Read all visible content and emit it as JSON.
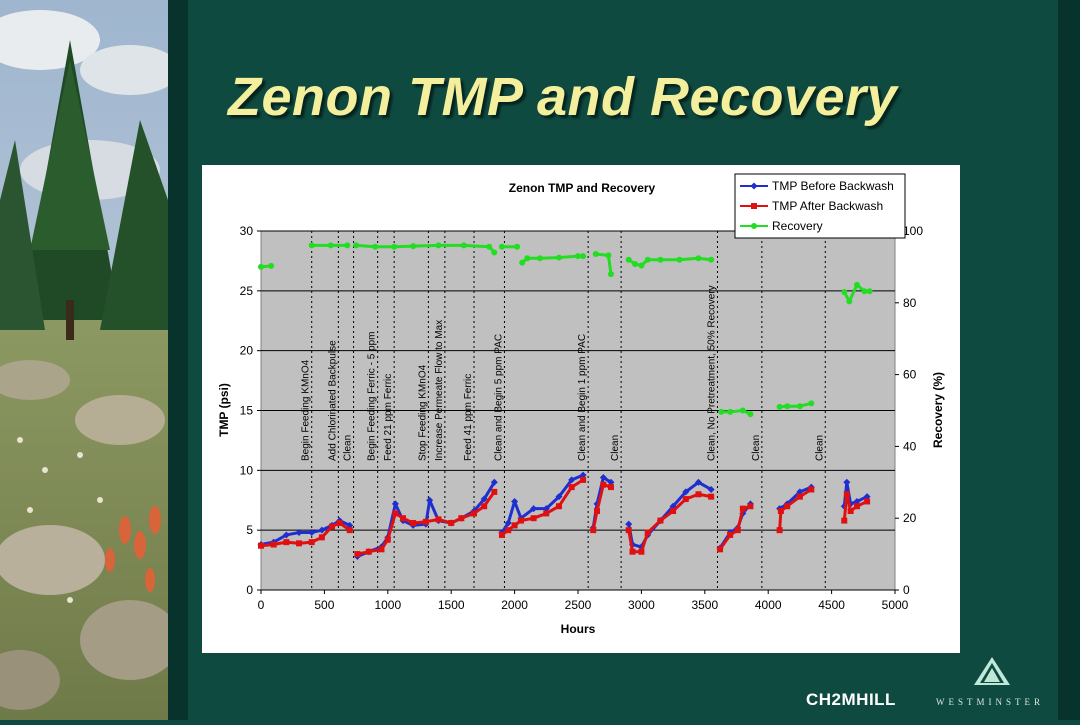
{
  "slide": {
    "title": "Zenon TMP and Recovery",
    "logos": {
      "left": "CH2MHILL",
      "right": "WESTMINSTER"
    }
  },
  "colors": {
    "background": "#0f4a40",
    "title": "#f4ef9c",
    "tmp_before": "#1f2fcf",
    "tmp_after": "#e01010",
    "recovery": "#22dd22",
    "plot_bg": "#c0c0c0"
  },
  "chart_data": {
    "type": "scatter",
    "title": "Zenon TMP and Recovery",
    "xlabel": "Hours",
    "ylabel": "TMP (psi)",
    "y2label": "Recovery (%)",
    "xlim": [
      0,
      5000
    ],
    "ylim": [
      0,
      30
    ],
    "y2lim": [
      0,
      100
    ],
    "xticks": [
      0,
      500,
      1000,
      1500,
      2000,
      2500,
      3000,
      3500,
      4000,
      4500,
      5000
    ],
    "yticks": [
      0,
      5,
      10,
      15,
      20,
      25,
      30
    ],
    "y2ticks": [
      0,
      20,
      40,
      60,
      80,
      100
    ],
    "grid": "horizontal",
    "legend_position": "top-right",
    "series": [
      {
        "name": "TMP Before Backwash",
        "axis": "left",
        "segments": [
          [
            [
              0,
              3.8
            ],
            [
              100,
              4.0
            ],
            [
              200,
              4.6
            ],
            [
              300,
              4.8
            ],
            [
              400,
              4.8
            ],
            [
              480,
              5.0
            ],
            [
              560,
              5.4
            ],
            [
              620,
              5.8
            ],
            [
              700,
              5.4
            ]
          ],
          [
            [
              760,
              2.8
            ],
            [
              850,
              3.2
            ],
            [
              950,
              3.6
            ],
            [
              1000,
              4.4
            ],
            [
              1060,
              7.2
            ],
            [
              1120,
              5.8
            ],
            [
              1200,
              5.4
            ],
            [
              1300,
              5.5
            ],
            [
              1330,
              7.5
            ],
            [
              1400,
              5.8
            ],
            [
              1500,
              5.6
            ],
            [
              1580,
              6.0
            ],
            [
              1680,
              6.6
            ],
            [
              1760,
              7.6
            ],
            [
              1840,
              9.0
            ]
          ],
          [
            [
              1900,
              4.8
            ],
            [
              1950,
              5.6
            ],
            [
              2000,
              7.4
            ],
            [
              2050,
              6.0
            ],
            [
              2150,
              6.8
            ],
            [
              2250,
              6.8
            ],
            [
              2350,
              7.8
            ],
            [
              2450,
              9.2
            ],
            [
              2540,
              9.6
            ]
          ],
          [
            [
              2620,
              5.2
            ],
            [
              2650,
              7.2
            ],
            [
              2700,
              9.4
            ],
            [
              2760,
              9.0
            ]
          ],
          [
            [
              2900,
              5.5
            ],
            [
              2930,
              3.8
            ],
            [
              3000,
              3.6
            ],
            [
              3050,
              4.6
            ],
            [
              3150,
              5.8
            ],
            [
              3250,
              7.0
            ],
            [
              3350,
              8.2
            ],
            [
              3450,
              9.0
            ],
            [
              3550,
              8.4
            ]
          ],
          [
            [
              3620,
              3.5
            ],
            [
              3700,
              4.8
            ],
            [
              3760,
              5.2
            ],
            [
              3800,
              6.4
            ],
            [
              3860,
              7.2
            ]
          ],
          [
            [
              4090,
              6.8
            ],
            [
              4150,
              7.2
            ],
            [
              4250,
              8.2
            ],
            [
              4340,
              8.6
            ]
          ],
          [
            [
              4600,
              7.0
            ],
            [
              4620,
              9.0
            ],
            [
              4650,
              7.2
            ],
            [
              4700,
              7.4
            ],
            [
              4780,
              7.8
            ]
          ]
        ]
      },
      {
        "name": "TMP After Backwash",
        "axis": "left",
        "segments": [
          [
            [
              0,
              3.7
            ],
            [
              100,
              3.8
            ],
            [
              200,
              4.0
            ],
            [
              300,
              3.9
            ],
            [
              400,
              4.0
            ],
            [
              480,
              4.4
            ],
            [
              560,
              5.3
            ],
            [
              620,
              5.6
            ],
            [
              700,
              5.0
            ]
          ],
          [
            [
              760,
              3.0
            ],
            [
              850,
              3.2
            ],
            [
              950,
              3.4
            ],
            [
              1000,
              4.2
            ],
            [
              1060,
              6.4
            ],
            [
              1120,
              6.0
            ],
            [
              1200,
              5.6
            ],
            [
              1300,
              5.7
            ],
            [
              1400,
              5.9
            ],
            [
              1500,
              5.6
            ],
            [
              1580,
              6.0
            ],
            [
              1680,
              6.4
            ],
            [
              1760,
              7.0
            ],
            [
              1840,
              8.2
            ]
          ],
          [
            [
              1900,
              4.6
            ],
            [
              1950,
              5.0
            ],
            [
              2000,
              5.4
            ],
            [
              2050,
              5.8
            ],
            [
              2150,
              6.0
            ],
            [
              2250,
              6.4
            ],
            [
              2350,
              7.0
            ],
            [
              2450,
              8.6
            ],
            [
              2540,
              9.2
            ]
          ],
          [
            [
              2620,
              5.0
            ],
            [
              2650,
              6.6
            ],
            [
              2700,
              8.8
            ],
            [
              2760,
              8.6
            ]
          ],
          [
            [
              2900,
              5.0
            ],
            [
              2930,
              3.2
            ],
            [
              3000,
              3.2
            ],
            [
              3050,
              4.8
            ],
            [
              3150,
              5.8
            ],
            [
              3250,
              6.6
            ],
            [
              3350,
              7.6
            ],
            [
              3450,
              8.0
            ],
            [
              3550,
              7.8
            ]
          ],
          [
            [
              3620,
              3.4
            ],
            [
              3700,
              4.6
            ],
            [
              3760,
              5.0
            ],
            [
              3800,
              6.8
            ],
            [
              3860,
              7.0
            ]
          ],
          [
            [
              4090,
              5.0
            ],
            [
              4100,
              6.6
            ],
            [
              4150,
              7.0
            ],
            [
              4250,
              7.8
            ],
            [
              4340,
              8.4
            ]
          ],
          [
            [
              4600,
              5.8
            ],
            [
              4620,
              8.0
            ],
            [
              4650,
              6.6
            ],
            [
              4700,
              7.0
            ],
            [
              4780,
              7.4
            ]
          ]
        ]
      },
      {
        "name": "Recovery",
        "axis": "right",
        "segments": [
          [
            [
              0,
              90.0
            ],
            [
              80,
              90.3
            ]
          ],
          [
            [
              400,
              96.0
            ],
            [
              550,
              96.0
            ],
            [
              680,
              96.0
            ]
          ],
          [
            [
              750,
              96.0
            ],
            [
              900,
              95.6
            ],
            [
              1050,
              95.6
            ],
            [
              1200,
              95.8
            ],
            [
              1400,
              96.0
            ],
            [
              1600,
              96.0
            ],
            [
              1800,
              95.6
            ],
            [
              1840,
              94.0
            ]
          ],
          [
            [
              1900,
              95.6
            ],
            [
              2020,
              95.6
            ]
          ],
          [
            [
              2060,
              91.2
            ],
            [
              2100,
              92.4
            ],
            [
              2200,
              92.4
            ],
            [
              2350,
              92.6
            ],
            [
              2500,
              93.0
            ],
            [
              2540,
              93.0
            ]
          ],
          [
            [
              2640,
              93.6
            ],
            [
              2740,
              93.2
            ],
            [
              2760,
              88.0
            ]
          ],
          [
            [
              2900,
              92.0
            ],
            [
              2950,
              90.8
            ],
            [
              3000,
              90.4
            ],
            [
              3050,
              92.0
            ],
            [
              3150,
              92.0
            ],
            [
              3300,
              92.0
            ],
            [
              3450,
              92.4
            ],
            [
              3550,
              92.0
            ]
          ],
          [
            [
              3630,
              49.6
            ],
            [
              3700,
              49.6
            ],
            [
              3800,
              50.0
            ],
            [
              3860,
              49.0
            ]
          ],
          [
            [
              4090,
              51.0
            ],
            [
              4150,
              51.2
            ],
            [
              4250,
              51.2
            ],
            [
              4340,
              52.0
            ]
          ],
          [
            [
              4600,
              83.0
            ],
            [
              4640,
              80.4
            ],
            [
              4700,
              85.0
            ],
            [
              4760,
              83.2
            ],
            [
              4800,
              83.2
            ]
          ]
        ]
      }
    ],
    "annotations": [
      {
        "x": 400,
        "label": "Begin Feeding KMnO4"
      },
      {
        "x": 610,
        "label": "Add Chlorinated Backpulse"
      },
      {
        "x": 730,
        "label": "Clean"
      },
      {
        "x": 920,
        "label": "Begin Feeding Ferric - 5 ppm"
      },
      {
        "x": 1050,
        "label": "Feed 21 ppm Ferric"
      },
      {
        "x": 1320,
        "label": "Stop Feeding KMnO4"
      },
      {
        "x": 1450,
        "label": "Increase Permeate Flow to Max"
      },
      {
        "x": 1680,
        "label": "Feed 41 ppm Ferric"
      },
      {
        "x": 1920,
        "label": "Clean and Begin 5 ppm PAC"
      },
      {
        "x": 2580,
        "label": "Clean and Begin 1 ppm PAC"
      },
      {
        "x": 2840,
        "label": "Clean"
      },
      {
        "x": 3600,
        "label": "Clean, No Pretreatment, 50% Recovery"
      },
      {
        "x": 3950,
        "label": "Clean"
      },
      {
        "x": 4450,
        "label": "Clean"
      }
    ]
  }
}
